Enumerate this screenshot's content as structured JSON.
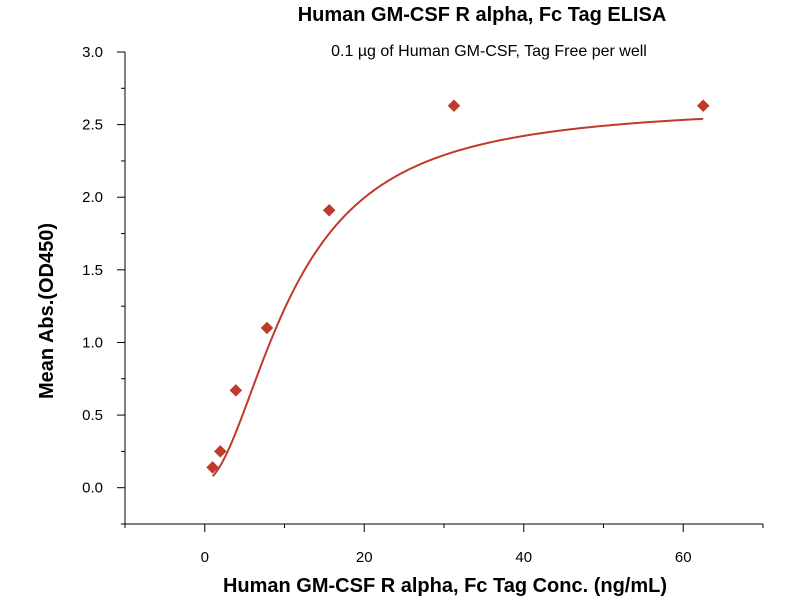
{
  "chart_data": {
    "type": "scatter",
    "title": "Human GM-CSF R alpha, Fc Tag ELISA",
    "subtitle": "0.1 µg of Human GM-CSF, Tag Free per well",
    "xlabel": "Human GM-CSF R alpha, Fc Tag Conc. (ng/mL)",
    "ylabel": "Mean Abs.(OD450)",
    "xlim": [
      -10,
      70
    ],
    "ylim": [
      -0.25,
      3.0
    ],
    "xticks": [
      0,
      20,
      40,
      60
    ],
    "yticks": [
      0.0,
      0.5,
      1.0,
      1.5,
      2.0,
      2.5,
      3.0
    ],
    "xtick_labels": [
      "0",
      "20",
      "40",
      "60"
    ],
    "ytick_labels": [
      "0.0",
      "0.5",
      "1.0",
      "1.5",
      "2.0",
      "2.5",
      "3.0"
    ],
    "grid": false,
    "series": [
      {
        "x": [
          0.98,
          1.95,
          3.9,
          7.8,
          15.6,
          31.25,
          62.5
        ],
        "y": [
          0.14,
          0.25,
          0.67,
          1.1,
          1.91,
          2.63,
          2.63
        ],
        "marker": "diamond",
        "color": "#c0392b",
        "fit": "four-parameter logistic curve"
      }
    ]
  }
}
